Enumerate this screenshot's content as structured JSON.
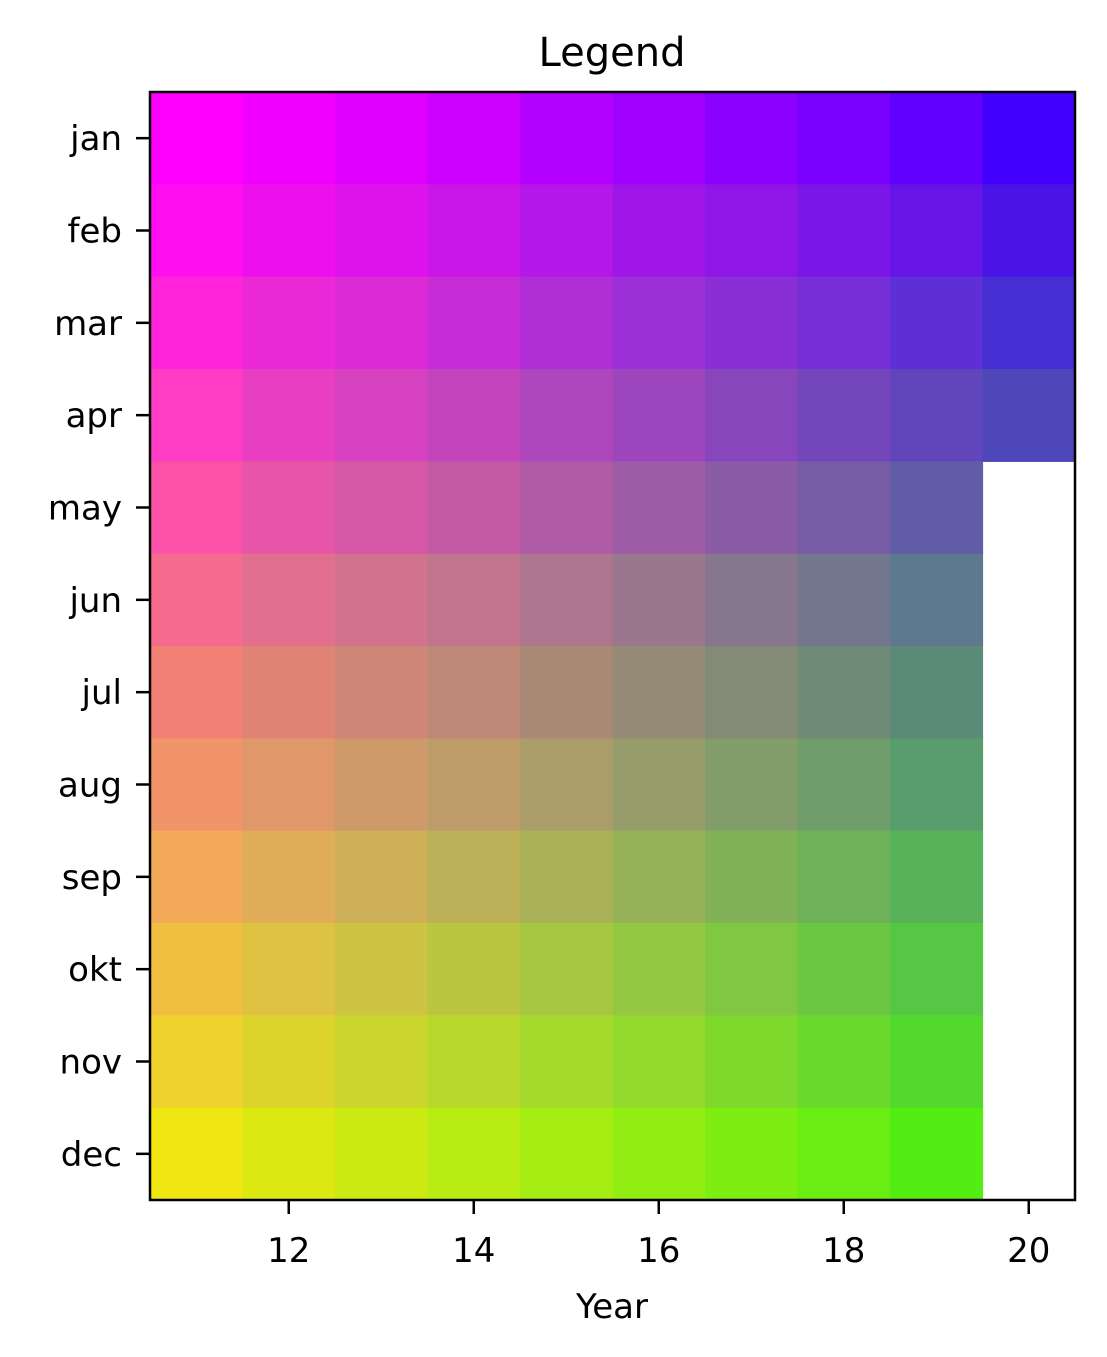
{
  "chart_data": {
    "type": "heatmap",
    "title": "Legend",
    "xlabel": "Year",
    "ylabel": "",
    "x": [
      11,
      12,
      13,
      14,
      15,
      16,
      17,
      18,
      19,
      20
    ],
    "xticks": [
      "12",
      "14",
      "16",
      "18",
      "20"
    ],
    "xlim": [
      10.5,
      20.5
    ],
    "categories": [
      "jan",
      "feb",
      "mar",
      "apr",
      "may",
      "jun",
      "jul",
      "aug",
      "sep",
      "okt",
      "nov",
      "dec"
    ],
    "grid": false,
    "legend": "none",
    "last_year_months_shown": 4,
    "colors": {
      "jan": [
        "#ff00ff",
        "#f200ff",
        "#e000ff",
        "#cc00ff",
        "#b400ff",
        "#a000ff",
        "#8c00ff",
        "#7a00ff",
        "#6200ff",
        "#4400ff"
      ],
      "feb": [
        "#ff0ff0",
        "#ee10ec",
        "#de12ea",
        "#c916e9",
        "#b517ea",
        "#a016e9",
        "#9016e8",
        "#7c16e8",
        "#6615e6",
        "#4a14e6"
      ],
      "mar": [
        "#ff24dc",
        "#ea28d8",
        "#dc2ad6",
        "#c62dd6",
        "#b02ed6",
        "#9c2fd6",
        "#8a2ed6",
        "#762ed6",
        "#602ed6",
        "#462ed2"
      ],
      "apr": [
        "#ff3cc4",
        "#e83ec2",
        "#d641c0",
        "#c444be",
        "#ae46be",
        "#9c45bc",
        "#8846bc",
        "#7446bc",
        "#6046ba",
        "#4c46b8"
      ],
      "may": [
        "#fb52a8",
        "#e655a7",
        "#d458a6",
        "#c459a5",
        "#b05ba5",
        "#9d5ca5",
        "#8a5ca5",
        "#765ca5",
        "#605ca6",
        null
      ],
      "jun": [
        "#f56b8e",
        "#e26f8e",
        "#d1728e",
        "#c0748e",
        "#ad758e",
        "#9a778e",
        "#87778e",
        "#73778e",
        "#5e788f",
        null
      ],
      "jul": [
        "#f28075",
        "#df8376",
        "#ce8676",
        "#bd8876",
        "#aa8a76",
        "#968b76",
        "#838b76",
        "#6f8b77",
        "#5b8b78",
        null
      ],
      "aug": [
        "#f2946a",
        "#e0976a",
        "#ce9a6a",
        "#bd9c6a",
        "#ab9d6a",
        "#979d6a",
        "#839d6a",
        "#6f9d6b",
        "#5a9d6c",
        null
      ],
      "sep": [
        "#f2aa58",
        "#dfad58",
        "#cdb058",
        "#bcb158",
        "#aab258",
        "#96b258",
        "#82b258",
        "#6eb258",
        "#58b25a",
        null
      ],
      "okt": [
        "#f0bf42",
        "#dec242",
        "#ccc442",
        "#bac642",
        "#a7c742",
        "#94c742",
        "#80c742",
        "#6bc742",
        "#55c744",
        null
      ],
      "nov": [
        "#efd22c",
        "#dcd42c",
        "#cad62c",
        "#b8d82c",
        "#a5d92c",
        "#92d92c",
        "#7ed92c",
        "#69d92c",
        "#53d92e",
        null
      ],
      "dec": [
        "#f0e612",
        "#dce812",
        "#caea12",
        "#b8ec12",
        "#a5ed12",
        "#92ed12",
        "#7eed12",
        "#69ed12",
        "#53ed14",
        null
      ]
    }
  }
}
